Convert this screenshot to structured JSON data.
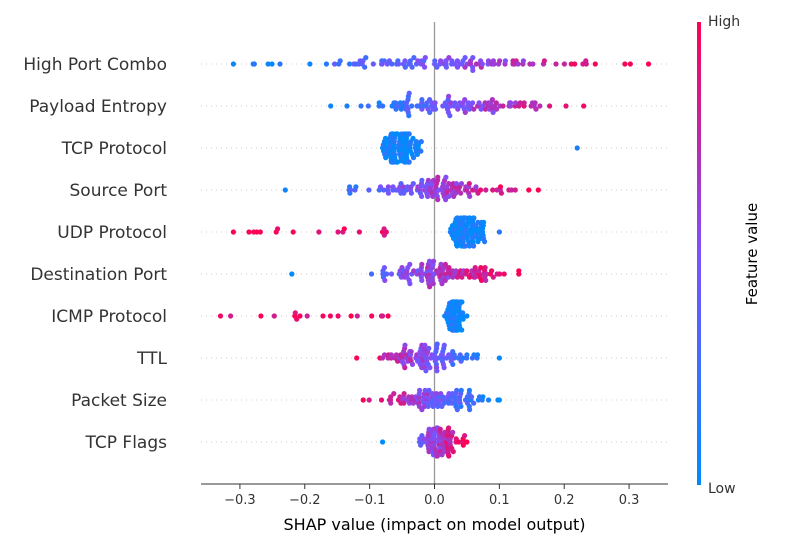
{
  "chart_data": {
    "type": "scatter",
    "subtype": "shap-beeswarm",
    "xlabel": "SHAP value (impact on model output)",
    "xlim": [
      -0.36,
      0.36
    ],
    "xticks": [
      -0.3,
      -0.2,
      -0.1,
      0.0,
      0.1,
      0.2,
      0.3
    ],
    "xtick_labels": [
      "−0.3",
      "−0.2",
      "−0.1",
      "0.0",
      "0.1",
      "0.2",
      "0.3"
    ],
    "colorbar": {
      "title": "Feature value",
      "high_label": "High",
      "low_label": "Low",
      "low_color": "#008bfb",
      "high_color": "#ff0052"
    },
    "features": [
      {
        "name": "High Port Combo",
        "min": -0.31,
        "max": 0.33,
        "center": 0.0,
        "spread": 0.18,
        "n": 110,
        "color_trend": 1
      },
      {
        "name": "Payload Entropy",
        "min": -0.16,
        "max": 0.23,
        "center": 0.03,
        "spread": 0.1,
        "n": 110,
        "color_trend": 1
      },
      {
        "name": "TCP Protocol",
        "min": -0.08,
        "max": 0.22,
        "center": -0.05,
        "spread": 0.02,
        "n": 110,
        "color_trend": -1,
        "bimodal": true
      },
      {
        "name": "Source Port",
        "min": -0.23,
        "max": 0.16,
        "center": 0.0,
        "spread": 0.08,
        "n": 110,
        "color_trend": 1
      },
      {
        "name": "UDP Protocol",
        "min": -0.31,
        "max": 0.1,
        "center": 0.05,
        "spread": 0.02,
        "n": 110,
        "color_trend": -1,
        "bimodal": true
      },
      {
        "name": "Destination Port",
        "min": -0.22,
        "max": 0.13,
        "center": 0.0,
        "spread": 0.07,
        "n": 110,
        "color_trend": 1
      },
      {
        "name": "ICMP Protocol",
        "min": -0.33,
        "max": 0.05,
        "center": 0.03,
        "spread": 0.01,
        "n": 90,
        "color_trend": -1,
        "bimodal": true
      },
      {
        "name": "TTL",
        "min": -0.12,
        "max": 0.1,
        "center": -0.01,
        "spread": 0.05,
        "n": 100,
        "color_trend": -1
      },
      {
        "name": "Packet Size",
        "min": -0.11,
        "max": 0.1,
        "center": 0.0,
        "spread": 0.05,
        "n": 100,
        "color_trend": -1
      },
      {
        "name": "TCP Flags",
        "min": -0.08,
        "max": 0.05,
        "center": 0.01,
        "spread": 0.02,
        "n": 80,
        "color_trend": 1
      }
    ]
  }
}
